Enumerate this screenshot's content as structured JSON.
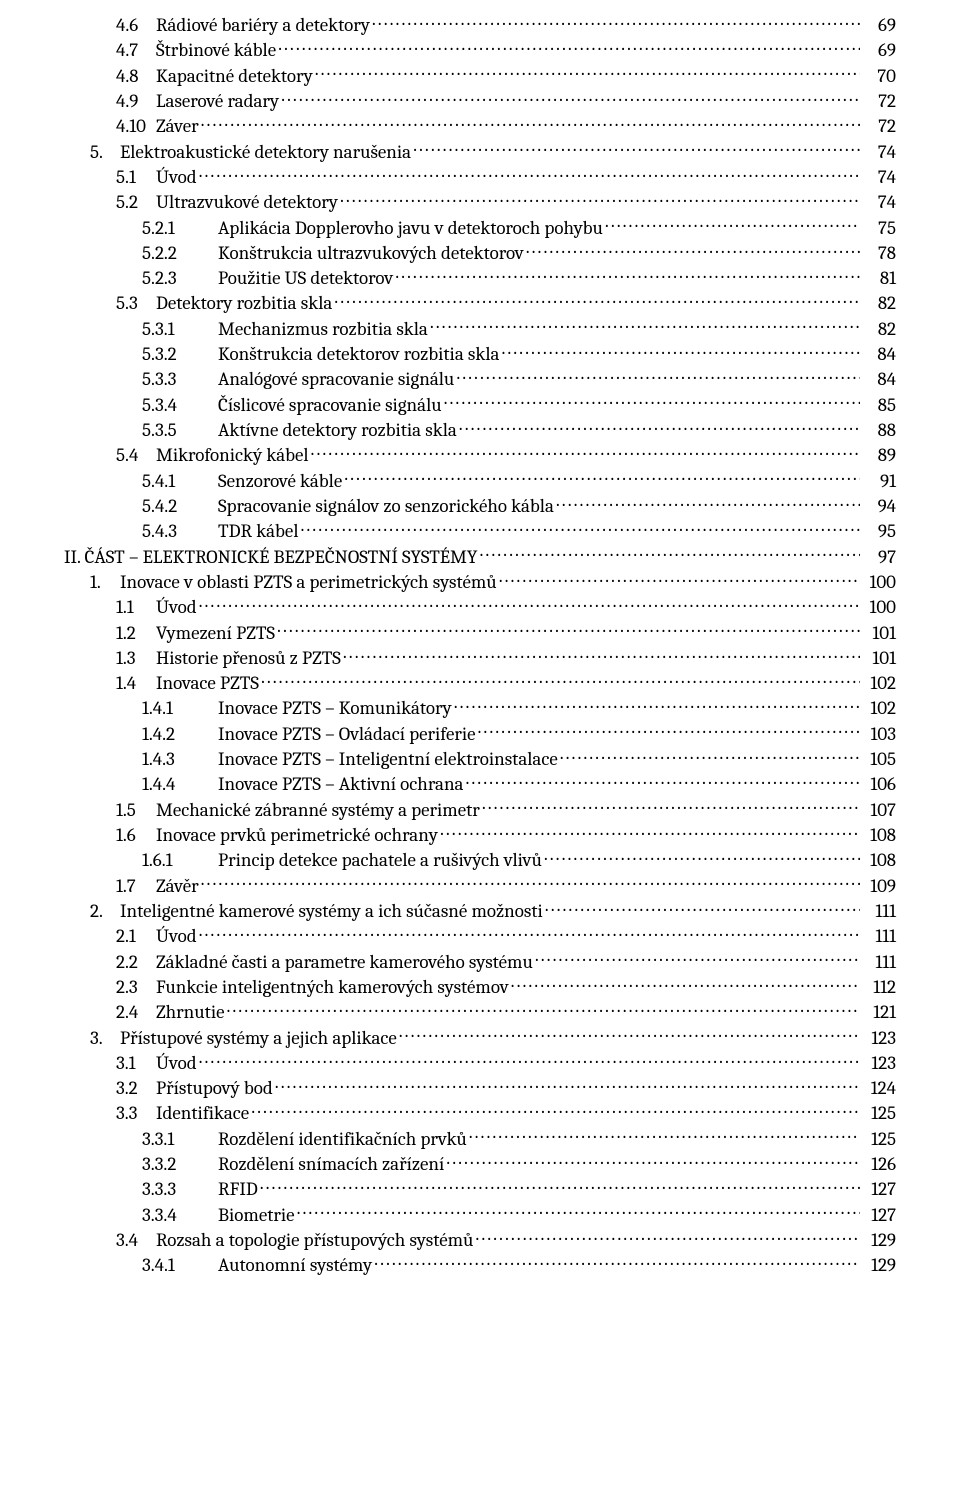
{
  "toc": [
    {
      "indent": 2,
      "num": "4.6",
      "title": "Rádiové bariéry a detektory",
      "page": "69"
    },
    {
      "indent": 2,
      "num": "4.7",
      "title": "Štrbinové káble",
      "page": "69"
    },
    {
      "indent": 2,
      "num": "4.8",
      "title": "Kapacitné detektory",
      "page": "70"
    },
    {
      "indent": 2,
      "num": "4.9",
      "title": "Laserové radary",
      "page": "72"
    },
    {
      "indent": 2,
      "num": "4.10",
      "title": "Záver",
      "page": "72"
    },
    {
      "indent": 1,
      "num": "5.",
      "title": "Elektroakustické detektory narušenia",
      "page": "74"
    },
    {
      "indent": 2,
      "num": "5.1",
      "title": "Úvod",
      "page": "74"
    },
    {
      "indent": 2,
      "num": "5.2",
      "title": "Ultrazvukové detektory",
      "page": "74"
    },
    {
      "indent": 3,
      "num": "5.2.1",
      "title": "Aplikácia Dopplerovho javu v detektoroch pohybu",
      "page": "75"
    },
    {
      "indent": 3,
      "num": "5.2.2",
      "title": "Konštrukcia ultrazvukových detektorov",
      "page": "78"
    },
    {
      "indent": 3,
      "num": "5.2.3",
      "title": "Použitie US detektorov",
      "page": "81"
    },
    {
      "indent": 2,
      "num": "5.3",
      "title": "Detektory rozbitia skla",
      "page": "82"
    },
    {
      "indent": 3,
      "num": "5.3.1",
      "title": "Mechanizmus rozbitia skla",
      "page": "82"
    },
    {
      "indent": 3,
      "num": "5.3.2",
      "title": "Konštrukcia detektorov rozbitia skla",
      "page": "84"
    },
    {
      "indent": 3,
      "num": "5.3.3",
      "title": "Analógové spracovanie signálu",
      "page": "84"
    },
    {
      "indent": 3,
      "num": "5.3.4",
      "title": "Číslicové spracovanie signálu",
      "page": "85"
    },
    {
      "indent": 3,
      "num": "5.3.5",
      "title": "Aktívne detektory rozbitia skla",
      "page": "88"
    },
    {
      "indent": 2,
      "num": "5.4",
      "title": "Mikrofonický kábel",
      "page": "89"
    },
    {
      "indent": 3,
      "num": "5.4.1",
      "title": "Senzorové káble",
      "page": "91"
    },
    {
      "indent": 3,
      "num": "5.4.2",
      "title": "Spracovanie signálov zo senzorického kábla",
      "page": "94"
    },
    {
      "indent": 3,
      "num": "5.4.3",
      "title": "TDR kábel",
      "page": "95"
    },
    {
      "indent": 0,
      "num": "",
      "title": "II. ČÁST – ELEKTRONICKÉ BEZPEČNOSTNÍ SYSTÉMY",
      "page": "97"
    },
    {
      "indent": 1,
      "num": "1.",
      "title": "Inovace v oblasti PZTS a perimetrických systémů",
      "page": "100"
    },
    {
      "indent": 2,
      "num": "1.1",
      "title": "Úvod",
      "page": "100"
    },
    {
      "indent": 2,
      "num": "1.2",
      "title": "Vymezení PZTS",
      "page": "101"
    },
    {
      "indent": 2,
      "num": "1.3",
      "title": "Historie přenosů z PZTS",
      "page": "101"
    },
    {
      "indent": 2,
      "num": "1.4",
      "title": "Inovace PZTS",
      "page": "102"
    },
    {
      "indent": 3,
      "num": "1.4.1",
      "title": "Inovace PZTS – Komunikátory",
      "page": "102"
    },
    {
      "indent": 3,
      "num": "1.4.2",
      "title": "Inovace PZTS – Ovládací periferie",
      "page": "103"
    },
    {
      "indent": 3,
      "num": "1.4.3",
      "title": "Inovace PZTS – Inteligentní elektroinstalace",
      "page": "105"
    },
    {
      "indent": 3,
      "num": "1.4.4",
      "title": "Inovace PZTS – Aktivní ochrana",
      "page": "106"
    },
    {
      "indent": 2,
      "num": "1.5",
      "title": "Mechanické zábranné systémy a perimetr",
      "page": "107"
    },
    {
      "indent": 2,
      "num": "1.6",
      "title": "Inovace prvků perimetrické ochrany",
      "page": "108"
    },
    {
      "indent": 3,
      "num": "1.6.1",
      "title": "Princip detekce pachatele a rušivých vlivů",
      "page": "108"
    },
    {
      "indent": 2,
      "num": "1.7",
      "title": "Závěr",
      "page": "109"
    },
    {
      "indent": 1,
      "num": "2.",
      "title": "Inteligentné kamerové systémy a ich súčasné možnosti",
      "page": "111"
    },
    {
      "indent": 2,
      "num": "2.1",
      "title": "Úvod",
      "page": "111"
    },
    {
      "indent": 2,
      "num": "2.2",
      "title": "Základné časti a parametre kamerového systému",
      "page": "111"
    },
    {
      "indent": 2,
      "num": "2.3",
      "title": "Funkcie inteligentných kamerových systémov",
      "page": "112"
    },
    {
      "indent": 2,
      "num": "2.4",
      "title": "Zhrnutie",
      "page": "121"
    },
    {
      "indent": 1,
      "num": "3.",
      "title": "Přístupové systémy a jejich aplikace",
      "page": "123"
    },
    {
      "indent": 2,
      "num": "3.1",
      "title": "Úvod",
      "page": "123"
    },
    {
      "indent": 2,
      "num": "3.2",
      "title": "Přístupový bod",
      "page": "124"
    },
    {
      "indent": 2,
      "num": "3.3",
      "title": "Identifikace",
      "page": "125"
    },
    {
      "indent": 3,
      "num": "3.3.1",
      "title": "Rozdělení identifikačních prvků",
      "page": "125"
    },
    {
      "indent": 3,
      "num": "3.3.2",
      "title": "Rozdělení snímacích zařízení",
      "page": "126"
    },
    {
      "indent": 3,
      "num": "3.3.3",
      "title": "RFID",
      "page": "127"
    },
    {
      "indent": 3,
      "num": "3.3.4",
      "title": "Biometrie",
      "page": "127"
    },
    {
      "indent": 2,
      "num": "3.4",
      "title": "Rozsah a topologie přístupových systémů",
      "page": "129"
    },
    {
      "indent": 3,
      "num": "3.4.1",
      "title": "Autonomní systémy",
      "page": "129"
    }
  ]
}
